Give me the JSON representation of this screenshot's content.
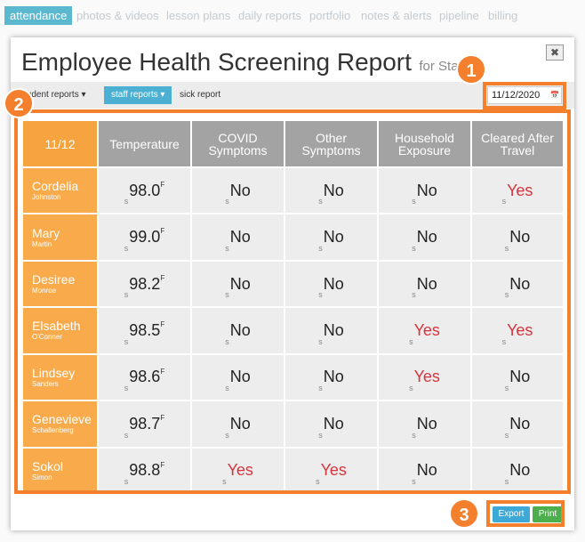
{
  "nav": [
    "attendance",
    "photos & videos",
    "lesson plans",
    "daily reports",
    "portfolio",
    "notes & alerts",
    "pipeline",
    "billing"
  ],
  "modal": {
    "title": "Employee Health Screening Report",
    "subtitle": "for Staff",
    "close": "✖"
  },
  "toolbar": {
    "tabs": [
      "student reports ▾",
      "staff reports ▾",
      "sick report"
    ],
    "date": "11/12/2020",
    "calendar": "📅"
  },
  "table": {
    "header": [
      "11/12",
      "Temperature",
      "COVID Symptoms",
      "Other Symptoms",
      "Household Exposure",
      "Cleared After Travel"
    ],
    "prefix": "s",
    "unit": "F",
    "rows": [
      [
        "Cordelia",
        "Johnston",
        "98.0",
        "No",
        "No",
        "No",
        "Yes"
      ],
      [
        "Mary",
        "Martin",
        "99.0",
        "No",
        "No",
        "No",
        "No"
      ],
      [
        "Desiree",
        "Monroe",
        "98.2",
        "No",
        "No",
        "No",
        "No"
      ],
      [
        "Elsabeth",
        "O'Conner",
        "98.5",
        "No",
        "No",
        "Yes",
        "Yes"
      ],
      [
        "Lindsey",
        "Sanders",
        "98.6",
        "No",
        "No",
        "Yes",
        "No"
      ],
      [
        "Genevieve",
        "Schallenberg",
        "98.7",
        "No",
        "No",
        "No",
        "No"
      ],
      [
        "Sokol",
        "Simon",
        "98.8",
        "Yes",
        "Yes",
        "No",
        "No"
      ]
    ]
  },
  "buttons": [
    "Export",
    "Print"
  ],
  "badges": [
    "1",
    "2",
    "3"
  ]
}
